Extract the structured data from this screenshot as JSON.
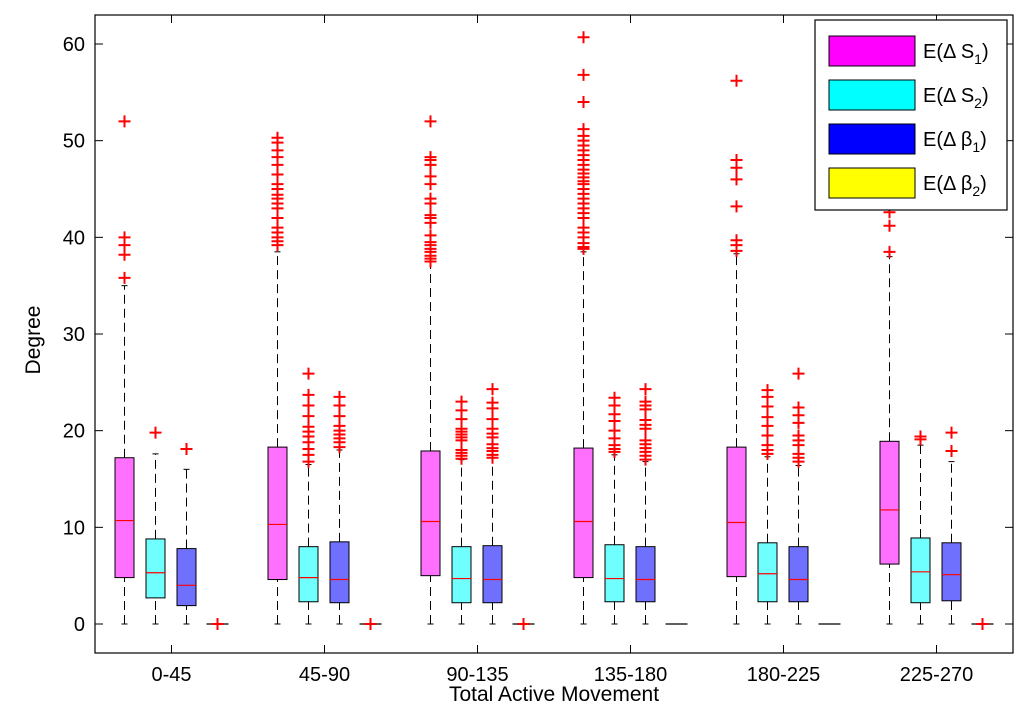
{
  "chart_data": {
    "type": "boxplot",
    "title": "",
    "xlabel": "Total Active Movement",
    "ylabel": "Degree",
    "ylim": [
      -3,
      63
    ],
    "yticks": [
      0,
      10,
      20,
      30,
      40,
      50,
      60
    ],
    "grid": false,
    "legend_position": "top-right",
    "categories": [
      "0-45",
      "45-90",
      "90-135",
      "135-180",
      "180-225",
      "225-270"
    ],
    "series": [
      {
        "name": "E(Δ S1)",
        "legend_main": "E(Δ S",
        "legend_sub": "1",
        "legend_close": ")",
        "color": "#ff00ff",
        "boxes": [
          {
            "min": 0,
            "q1": 4.8,
            "median": 10.7,
            "q3": 17.2,
            "max": 35,
            "outliers": [
              35.8,
              38.2,
              39.2,
              40,
              52
            ]
          },
          {
            "min": 0,
            "q1": 4.6,
            "median": 10.3,
            "q3": 18.3,
            "max": 38.5,
            "outliers": [
              39.2,
              39.6,
              40,
              40.5,
              41,
              42,
              43,
              43.5,
              44,
              44.4,
              45,
              45.5,
              46.5,
              47.5,
              48.3,
              49,
              49.8,
              50.3
            ]
          },
          {
            "min": 0,
            "q1": 5,
            "median": 10.6,
            "q3": 17.9,
            "max": 37.5,
            "outliers": [
              37.5,
              37.8,
              38.1,
              38.5,
              38.8,
              39.2,
              39.5,
              40.2,
              41.5,
              42,
              42.3,
              43.5,
              44,
              45.5,
              46.3,
              47.5,
              48,
              48.3,
              52
            ]
          },
          {
            "min": 0,
            "q1": 4.8,
            "median": 10.6,
            "q3": 18.2,
            "max": 38.5,
            "outliers": [
              38.8,
              39,
              39.4,
              40,
              40.5,
              41,
              42,
              42.5,
              43,
              43.5,
              44,
              44.5,
              45,
              45.5,
              45.8,
              46.2,
              46.6,
              47,
              47.5,
              48,
              48.5,
              49,
              49.5,
              50,
              50.5,
              51.2,
              54,
              56.8,
              60.7
            ]
          },
          {
            "min": 0,
            "q1": 4.9,
            "median": 10.5,
            "q3": 18.3,
            "max": 38.3,
            "outliers": [
              38.6,
              39.2,
              39.7,
              43.2,
              46,
              47.2,
              48,
              56.2
            ]
          },
          {
            "min": 0,
            "q1": 6.2,
            "median": 11.8,
            "q3": 18.9,
            "max": 38,
            "outliers": [
              38.5,
              41.2,
              42.6
            ]
          }
        ]
      },
      {
        "name": "E(Δ S2)",
        "legend_main": "E(Δ S",
        "legend_sub": "2",
        "legend_close": ")",
        "color": "#00ffff",
        "boxes": [
          {
            "min": 0,
            "q1": 2.7,
            "median": 5.3,
            "q3": 8.8,
            "max": 17.6,
            "outliers": [
              19.8
            ]
          },
          {
            "min": 0,
            "q1": 2.3,
            "median": 4.8,
            "q3": 8.0,
            "max": 16.5,
            "outliers": [
              16.8,
              17.5,
              18.1,
              18.8,
              19.4,
              19.9,
              20.4,
              21.5,
              22.6,
              23.7,
              25.9
            ]
          },
          {
            "min": 0,
            "q1": 2.2,
            "median": 4.7,
            "q3": 8.0,
            "max": 17,
            "outliers": [
              17.1,
              17.4,
              17.7,
              18,
              19,
              19.3,
              19.6,
              19.9,
              20.2,
              21.2,
              22.1,
              23
            ]
          },
          {
            "min": 0,
            "q1": 2.3,
            "median": 4.7,
            "q3": 8.2,
            "max": 17.5,
            "outliers": [
              17.8,
              18.1,
              18.5,
              19.2,
              20,
              21,
              21.7,
              22.6,
              23.4
            ]
          },
          {
            "min": 0,
            "q1": 2.3,
            "median": 5.2,
            "q3": 8.4,
            "max": 17.3,
            "outliers": [
              17.6,
              18,
              18.5,
              19.5,
              20.5,
              21.4,
              22.5,
              23.5,
              24.2
            ]
          },
          {
            "min": 0,
            "q1": 2.2,
            "median": 5.4,
            "q3": 8.9,
            "max": 18.5,
            "outliers": [
              19.1,
              19.4
            ]
          }
        ]
      },
      {
        "name": "E(Δ β1)",
        "legend_main": "E(Δ β",
        "legend_sub": "1",
        "legend_close": ")",
        "color": "#0000ff",
        "boxes": [
          {
            "min": 0,
            "q1": 1.9,
            "median": 4.0,
            "q3": 7.8,
            "max": 16,
            "outliers": [
              18.1
            ]
          },
          {
            "min": 0,
            "q1": 2.2,
            "median": 4.6,
            "q3": 8.5,
            "max": 18,
            "outliers": [
              18.3,
              18.8,
              19.2,
              19.6,
              20,
              20.5,
              21.5,
              22.6,
              23.5
            ]
          },
          {
            "min": 0,
            "q1": 2.2,
            "median": 4.6,
            "q3": 8.1,
            "max": 17.2,
            "outliers": [
              17.2,
              17.5,
              17.9,
              18.2,
              18.6,
              19.3,
              19.7,
              20.2,
              21.2,
              22.3,
              22.9,
              24.3
            ]
          },
          {
            "min": 0,
            "q1": 2.3,
            "median": 4.6,
            "q3": 8.0,
            "max": 16.8,
            "outliers": [
              17,
              17.4,
              17.8,
              18.2,
              18.6,
              19,
              20.2,
              20.6,
              21.1,
              22.2,
              22.6,
              23,
              24.3
            ]
          },
          {
            "min": 0,
            "q1": 2.3,
            "median": 4.6,
            "q3": 8.0,
            "max": 16.4,
            "outliers": [
              16.8,
              17.2,
              17.6,
              18.5,
              19,
              19.5,
              20.8,
              21.6,
              22.4,
              25.9
            ]
          },
          {
            "min": 0,
            "q1": 2.4,
            "median": 5.1,
            "q3": 8.4,
            "max": 16.8,
            "outliers": [
              17.9,
              19.8
            ]
          }
        ]
      },
      {
        "name": "E(Δ β2)",
        "legend_main": "E(Δ β",
        "legend_sub": "2",
        "legend_close": ")",
        "color": "#ffff00",
        "boxes": [
          {
            "min": 0,
            "q1": 0,
            "median": 0,
            "q3": 0,
            "max": 0,
            "outliers": [
              0
            ]
          },
          {
            "min": 0,
            "q1": 0,
            "median": 0,
            "q3": 0,
            "max": 0,
            "outliers": [
              0
            ]
          },
          {
            "min": 0,
            "q1": 0,
            "median": 0,
            "q3": 0,
            "max": 0,
            "outliers": [
              0
            ]
          },
          {
            "min": 0,
            "q1": 0,
            "median": 0,
            "q3": 0,
            "max": 0,
            "outliers": []
          },
          {
            "min": 0,
            "q1": 0,
            "median": 0,
            "q3": 0,
            "max": 0,
            "outliers": []
          },
          {
            "min": 0,
            "q1": 0,
            "median": 0,
            "q3": 0,
            "max": 0,
            "outliers": [
              0
            ]
          }
        ]
      }
    ]
  }
}
